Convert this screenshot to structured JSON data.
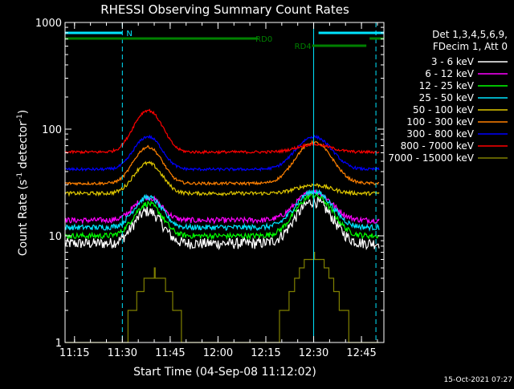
{
  "chart_data": {
    "type": "line",
    "title": "RHESSI Observing Summary Count Rates",
    "xlabel": "Start Time (04-Sep-08 11:12:02)",
    "ylabel_main": "Count Rate (s",
    "ylabel_sup1": "-1",
    "ylabel_mid": " detector",
    "ylabel_sup2": "-1",
    "ylabel_end": ")",
    "yscale": "log",
    "xlim_minutes": [
      0,
      100
    ],
    "ylim": [
      1,
      1000
    ],
    "x_ticks": [
      {
        "label": "11:15",
        "minutes": 2.97
      },
      {
        "label": "11:30",
        "minutes": 17.97
      },
      {
        "label": "11:45",
        "minutes": 32.97
      },
      {
        "label": "12:00",
        "minutes": 47.97
      },
      {
        "label": "12:15",
        "minutes": 62.97
      },
      {
        "label": "12:30",
        "minutes": 77.97
      },
      {
        "label": "12:45",
        "minutes": 92.97
      }
    ],
    "y_ticks": [
      {
        "label": "1",
        "value": 1
      },
      {
        "label": "10",
        "value": 10
      },
      {
        "label": "100",
        "value": 100
      },
      {
        "label": "1000",
        "value": 1000
      }
    ],
    "legend_header": [
      "Det 1,3,4,5,6,9,",
      "FDecim 1, Att 0"
    ],
    "legend_placement": "right",
    "timestamp": "15-Oct-2021 07:27",
    "segments": [
      {
        "label": "N",
        "color": "#00e5ff",
        "y_level": 0,
        "x": [
          [
            0,
            17.97
          ],
          [
            79.5,
            100
          ]
        ]
      },
      {
        "label": "RD0",
        "color": "#008000",
        "y_level": 1,
        "x": [
          [
            0,
            60.5
          ],
          [
            95.5,
            100
          ]
        ]
      },
      {
        "label": "RD4",
        "color": "#008000",
        "y_level": 2,
        "x": [
          [
            77.5,
            94.5
          ]
        ]
      }
    ],
    "vlines": [
      {
        "minutes": 17.97,
        "style": "dashed",
        "color": "#00e5ff"
      },
      {
        "minutes": 77.97,
        "style": "solid",
        "color": "#00e5ff"
      },
      {
        "minutes": 97.5,
        "style": "dashed",
        "color": "#00e5ff"
      }
    ],
    "series": [
      {
        "name": "3 - 6 keV",
        "color": "#ffffff",
        "base": 8.5,
        "peaks": [
          [
            26,
            17,
            5.5
          ],
          [
            78,
            21,
            7
          ]
        ],
        "noise": 0.12,
        "end": [
          98.5,
          5.5
        ]
      },
      {
        "name": "6 - 12 keV",
        "color": "#ff00ff",
        "base": 14,
        "peaks": [
          [
            26,
            23,
            5.5
          ],
          [
            78,
            26,
            7
          ]
        ],
        "noise": 0.06,
        "end": [
          98.5,
          11
        ]
      },
      {
        "name": "12 - 25 keV",
        "color": "#00ff00",
        "base": 10,
        "peaks": [
          [
            26,
            20,
            5.5
          ],
          [
            78,
            24,
            7
          ]
        ],
        "noise": 0.06,
        "end": [
          98.5,
          8
        ]
      },
      {
        "name": "25 - 50 keV",
        "color": "#00e5ff",
        "base": 12,
        "peaks": [
          [
            26,
            23,
            5.5
          ],
          [
            78,
            26,
            7
          ]
        ],
        "noise": 0.06,
        "end": [
          98.5,
          11
        ]
      },
      {
        "name": "50 - 100 keV",
        "color": "#e0c800",
        "base": 25,
        "peaks": [
          [
            26,
            48,
            5.5
          ],
          [
            78,
            30,
            7
          ]
        ],
        "noise": 0.04,
        "end": [
          98.5,
          27
        ]
      },
      {
        "name": "100 - 300 keV",
        "color": "#ff8000",
        "base": 31,
        "peaks": [
          [
            26,
            68,
            5.5
          ],
          [
            78,
            75,
            7
          ]
        ],
        "noise": 0.03,
        "end": [
          98.5,
          31
        ]
      },
      {
        "name": "300 - 800 keV",
        "color": "#0000ff",
        "base": 42,
        "peaks": [
          [
            26,
            85,
            5.5
          ],
          [
            78,
            85,
            7
          ]
        ],
        "noise": 0.03,
        "end": [
          98.5,
          45
        ]
      },
      {
        "name": "800 - 7000 keV",
        "color": "#ff0000",
        "base": 61,
        "peaks": [
          [
            26,
            150,
            5.5
          ],
          [
            78,
            72,
            7
          ]
        ],
        "noise": 0.03,
        "end": [
          98.5,
          61
        ]
      },
      {
        "name": "7000 - 15000 keV",
        "color": "#808000",
        "base": 1,
        "peaks": [
          [
            28,
            4.5,
            6
          ],
          [
            78,
            6.5,
            7
          ]
        ],
        "noise": 0.0,
        "end": [
          98.5,
          1
        ]
      }
    ]
  }
}
